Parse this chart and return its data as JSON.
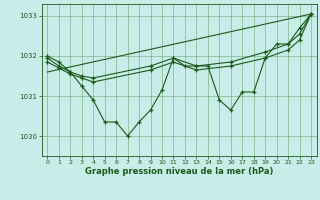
{
  "title": "Graphe pression niveau de la mer (hPa)",
  "bg_color": "#c8ece8",
  "grid_color": "#4a8a4a",
  "line_color": "#1a5a1a",
  "xlim": [
    -0.5,
    23.5
  ],
  "ylim": [
    1029.5,
    1033.3
  ],
  "yticks": [
    1030,
    1031,
    1032,
    1033
  ],
  "xticks": [
    0,
    1,
    2,
    3,
    4,
    5,
    6,
    7,
    8,
    9,
    10,
    11,
    12,
    13,
    14,
    15,
    16,
    17,
    18,
    19,
    20,
    21,
    22,
    23
  ],
  "line_jagged_x": [
    0,
    1,
    2,
    3,
    4,
    5,
    6,
    7,
    8,
    9,
    10,
    11,
    12,
    13,
    14,
    15,
    16,
    17,
    18,
    19,
    20,
    21,
    22,
    23
  ],
  "line_jagged_y": [
    1032.0,
    1031.85,
    1031.6,
    1031.25,
    1030.9,
    1030.35,
    1030.35,
    1030.0,
    1030.35,
    1030.65,
    1031.15,
    1031.95,
    1031.75,
    1031.75,
    1031.75,
    1030.9,
    1030.65,
    1031.1,
    1031.1,
    1031.95,
    1032.3,
    1032.3,
    1032.7,
    1033.05
  ],
  "line_smooth1_x": [
    0,
    1,
    2,
    3,
    4,
    9,
    11,
    13,
    16,
    19,
    21,
    22,
    23
  ],
  "line_smooth1_y": [
    1031.95,
    1031.75,
    1031.6,
    1031.5,
    1031.45,
    1031.75,
    1031.95,
    1031.75,
    1031.85,
    1032.1,
    1032.3,
    1032.55,
    1033.05
  ],
  "line_smooth2_x": [
    0,
    1,
    2,
    3,
    4,
    9,
    11,
    13,
    16,
    19,
    21,
    22,
    23
  ],
  "line_smooth2_y": [
    1031.85,
    1031.7,
    1031.55,
    1031.45,
    1031.35,
    1031.65,
    1031.85,
    1031.65,
    1031.75,
    1031.95,
    1032.15,
    1032.4,
    1033.05
  ],
  "line_trend_x": [
    0,
    23
  ],
  "line_trend_y": [
    1031.6,
    1033.05
  ]
}
